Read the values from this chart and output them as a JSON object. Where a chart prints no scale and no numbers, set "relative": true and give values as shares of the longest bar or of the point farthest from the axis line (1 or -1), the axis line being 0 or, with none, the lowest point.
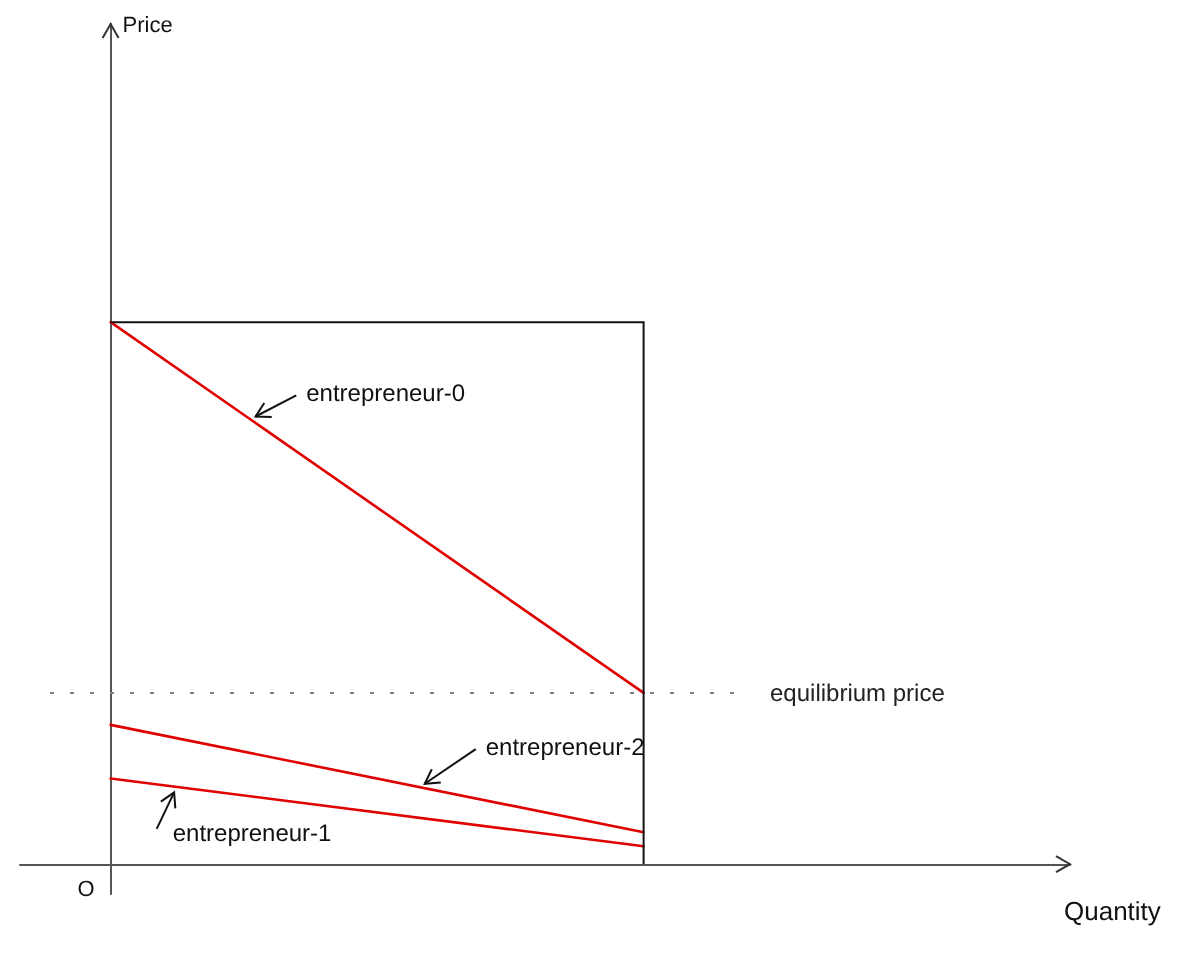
{
  "chart_data": {
    "type": "line",
    "relative": true,
    "grid": false,
    "marker": "none",
    "line_style": "solid",
    "categories": [
      null,
      null
    ],
    "series": [
      {
        "color": "#e00000",
        "values": [
          1,
          0.316
        ]
      },
      {
        "color": "#e00000",
        "values": [
          0.158,
          0.033
        ]
      },
      {
        "color": "#e00000",
        "values": [
          0.257,
          0.059
        ]
      }
    ],
    "ref_lines": [
      {
        "axis": "y",
        "value": 0.316,
        "label": "equilibrium price",
        "color": "#808080",
        "line_style": "dotted"
      }
    ],
    "annotations": [
      "entrepreneur-0",
      "entrepreneur-2",
      "entrepreneur-1",
      "O",
      "Price",
      "Quantity"
    ]
  }
}
